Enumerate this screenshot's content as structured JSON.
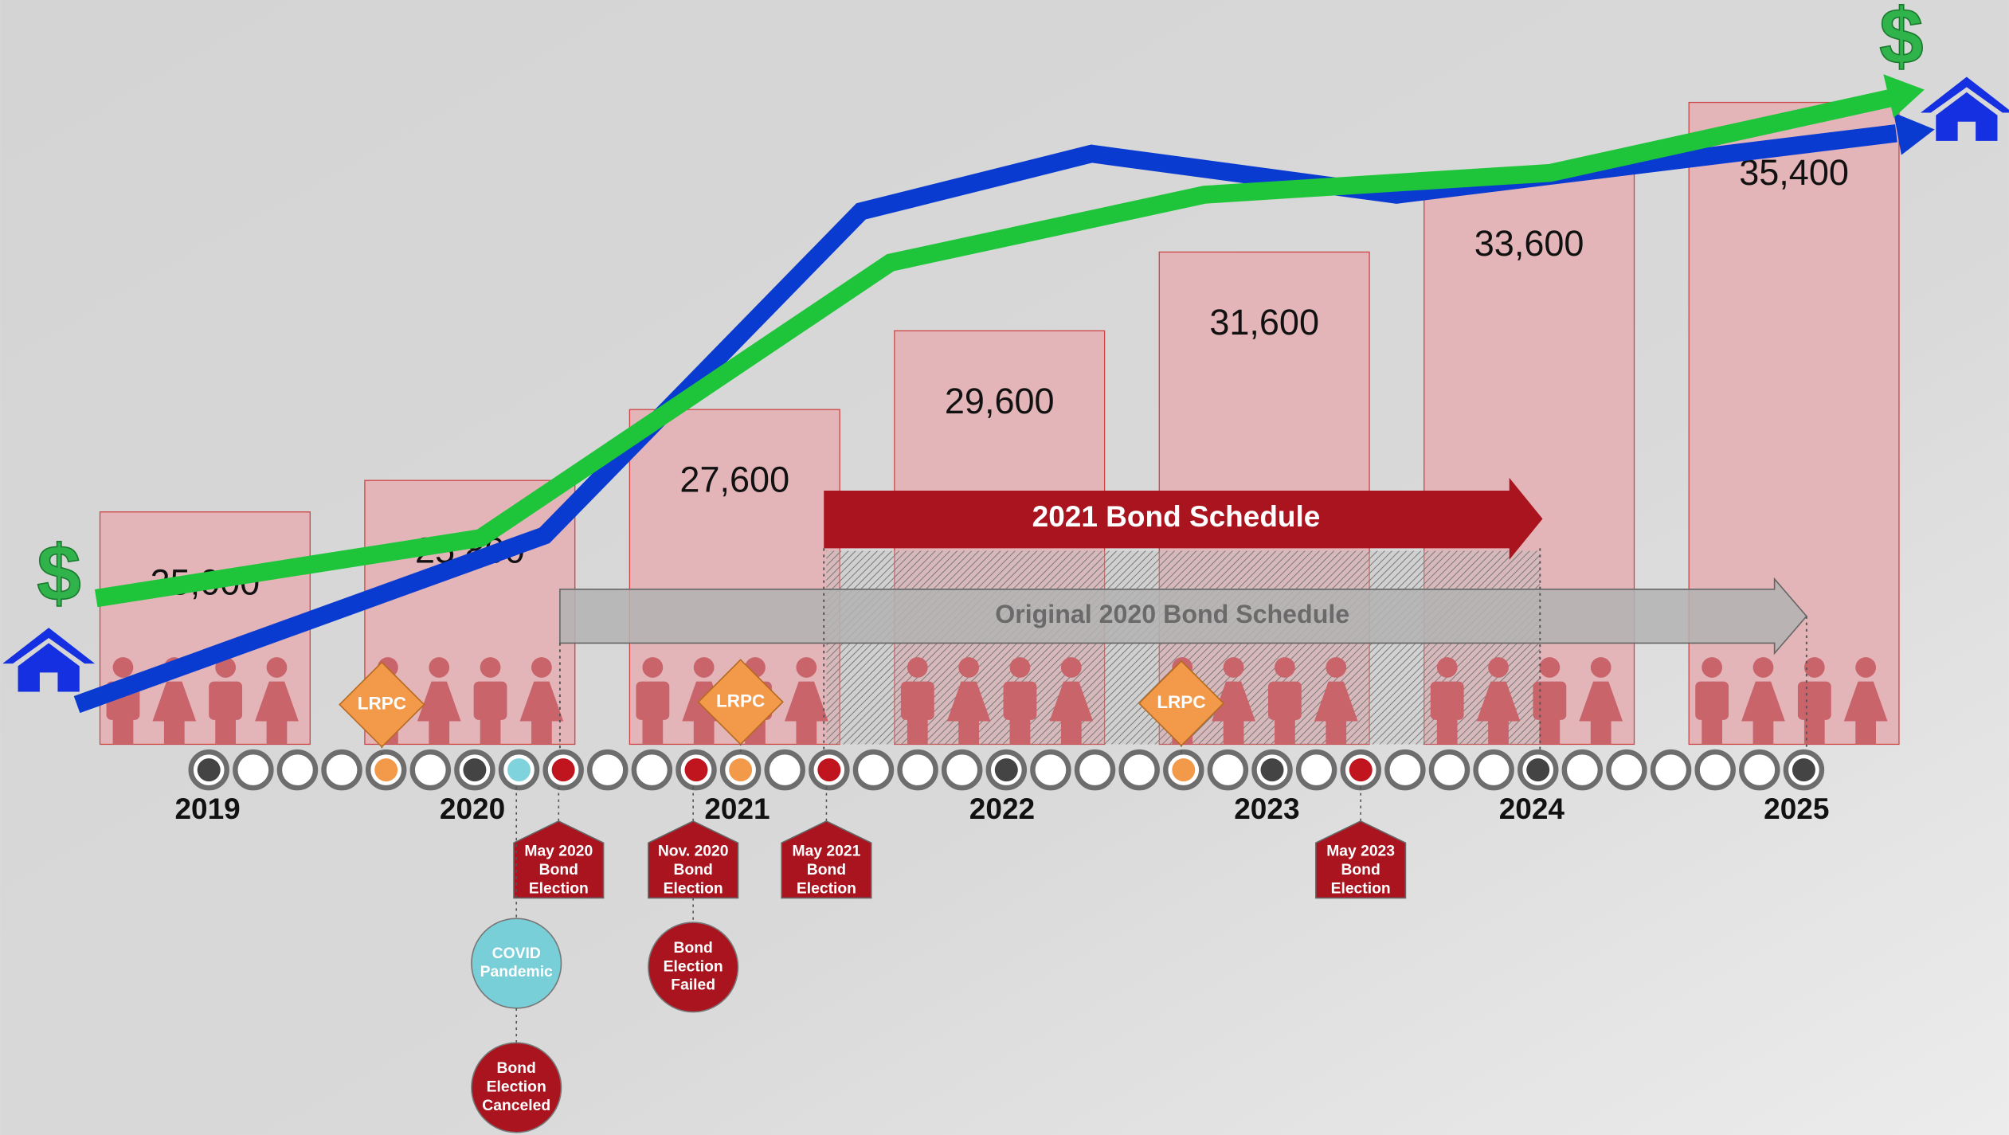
{
  "chart_data": {
    "type": "bar",
    "categories": [
      "2019",
      "2020",
      "2021",
      "2022",
      "2023",
      "2024",
      "2025"
    ],
    "values": [
      25000,
      25800,
      27600,
      29600,
      31600,
      33600,
      35400
    ],
    "value_labels": [
      "25,000",
      "25,800",
      "27,600",
      "29,600",
      "31,600",
      "33,600",
      "35,400"
    ],
    "color": "#e3b5b8",
    "ylim": [
      19100,
      38000
    ]
  },
  "icon": "$",
  "schedules": [
    "2021 Bond Schedule",
    "Original 2020 Bond Schedule"
  ],
  "milestones": [
    "LRPC",
    "LRPC",
    "LRPC"
  ],
  "events": [
    {
      "lines": [
        "May 2020",
        "Bond",
        "Election"
      ]
    },
    {
      "lines": [
        "Nov. 2020",
        "Bond",
        "Election"
      ]
    },
    {
      "lines": [
        "May 2021",
        "Bond",
        "Election"
      ]
    },
    {
      "lines": [
        "May 2023",
        "Bond",
        "Election"
      ]
    }
  ],
  "outcomes": [
    {
      "lines": [
        "COVID",
        "Pandemic"
      ]
    },
    {
      "lines": [
        "Bond",
        "Election",
        "Failed"
      ]
    },
    {
      "lines": [
        "Bond",
        "Election",
        "Canceled"
      ]
    }
  ]
}
